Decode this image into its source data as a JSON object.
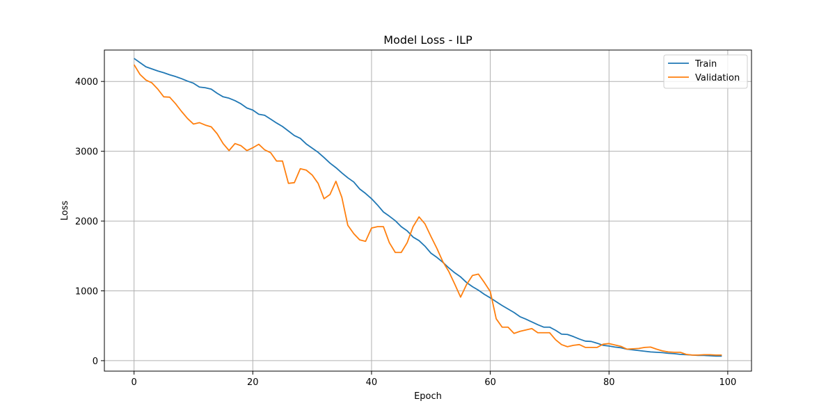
{
  "chart_data": {
    "type": "line",
    "title": "Model Loss - ILP",
    "xlabel": "Epoch",
    "ylabel": "Loss",
    "xlim": [
      -5,
      104
    ],
    "ylim": [
      -150,
      4450
    ],
    "xticks": [
      0,
      20,
      40,
      60,
      80,
      100
    ],
    "yticks": [
      0,
      1000,
      2000,
      3000,
      4000
    ],
    "grid": true,
    "legend_position": "top-right",
    "series": [
      {
        "name": "Train",
        "color": "#1f77b4",
        "x": [
          0,
          1,
          2,
          3,
          4,
          5,
          6,
          7,
          8,
          9,
          10,
          11,
          12,
          13,
          14,
          15,
          16,
          17,
          18,
          19,
          20,
          21,
          22,
          23,
          24,
          25,
          26,
          27,
          28,
          29,
          30,
          31,
          32,
          33,
          34,
          35,
          36,
          37,
          38,
          39,
          40,
          41,
          42,
          43,
          44,
          45,
          46,
          47,
          48,
          49,
          50,
          51,
          52,
          53,
          54,
          55,
          56,
          57,
          58,
          59,
          60,
          61,
          62,
          63,
          64,
          65,
          66,
          67,
          68,
          69,
          70,
          71,
          72,
          73,
          74,
          75,
          76,
          77,
          78,
          79,
          80,
          81,
          82,
          83,
          84,
          85,
          86,
          87,
          88,
          89,
          90,
          91,
          92,
          93,
          94,
          95,
          96,
          97,
          98,
          99
        ],
        "values": [
          4330,
          4270,
          4210,
          4180,
          4150,
          4125,
          4095,
          4070,
          4040,
          4005,
          3975,
          3920,
          3910,
          3890,
          3830,
          3780,
          3760,
          3725,
          3680,
          3620,
          3590,
          3530,
          3515,
          3460,
          3405,
          3355,
          3290,
          3225,
          3185,
          3105,
          3045,
          2985,
          2910,
          2830,
          2765,
          2690,
          2620,
          2560,
          2460,
          2395,
          2320,
          2230,
          2130,
          2070,
          2005,
          1920,
          1860,
          1770,
          1720,
          1640,
          1540,
          1480,
          1410,
          1330,
          1260,
          1200,
          1120,
          1060,
          1010,
          950,
          900,
          845,
          790,
          740,
          690,
          630,
          595,
          555,
          515,
          480,
          480,
          435,
          380,
          375,
          345,
          310,
          280,
          275,
          250,
          220,
          210,
          195,
          185,
          165,
          155,
          145,
          135,
          125,
          120,
          115,
          105,
          100,
          90,
          85,
          80,
          75,
          75,
          70,
          65,
          65
        ]
      },
      {
        "name": "Validation",
        "color": "#ff7f0e",
        "x": [
          0,
          1,
          2,
          3,
          4,
          5,
          6,
          7,
          8,
          9,
          10,
          11,
          12,
          13,
          14,
          15,
          16,
          17,
          18,
          19,
          20,
          21,
          22,
          23,
          24,
          25,
          26,
          27,
          28,
          29,
          30,
          31,
          32,
          33,
          34,
          35,
          36,
          37,
          38,
          39,
          40,
          41,
          42,
          43,
          44,
          45,
          46,
          47,
          48,
          49,
          50,
          51,
          52,
          53,
          54,
          55,
          56,
          57,
          58,
          59,
          60,
          61,
          62,
          63,
          64,
          65,
          66,
          67,
          68,
          69,
          70,
          71,
          72,
          73,
          74,
          75,
          76,
          77,
          78,
          79,
          80,
          81,
          82,
          83,
          84,
          85,
          86,
          87,
          88,
          89,
          90,
          91,
          92,
          93,
          94,
          95,
          96,
          97,
          98,
          99
        ],
        "values": [
          4240,
          4100,
          4020,
          3980,
          3890,
          3780,
          3775,
          3680,
          3570,
          3470,
          3390,
          3410,
          3375,
          3350,
          3250,
          3110,
          3010,
          3110,
          3080,
          3010,
          3050,
          3100,
          3020,
          2980,
          2860,
          2860,
          2540,
          2550,
          2750,
          2730,
          2660,
          2540,
          2320,
          2380,
          2570,
          2340,
          1940,
          1820,
          1730,
          1710,
          1900,
          1920,
          1920,
          1690,
          1550,
          1550,
          1690,
          1920,
          2060,
          1960,
          1780,
          1610,
          1420,
          1280,
          1100,
          910,
          1090,
          1220,
          1240,
          1120,
          990,
          600,
          480,
          480,
          390,
          420,
          440,
          460,
          400,
          400,
          400,
          300,
          230,
          200,
          220,
          230,
          190,
          190,
          190,
          235,
          245,
          225,
          205,
          165,
          170,
          175,
          190,
          195,
          165,
          140,
          125,
          120,
          120,
          90,
          80,
          80,
          85,
          85,
          80,
          80
        ]
      }
    ]
  }
}
